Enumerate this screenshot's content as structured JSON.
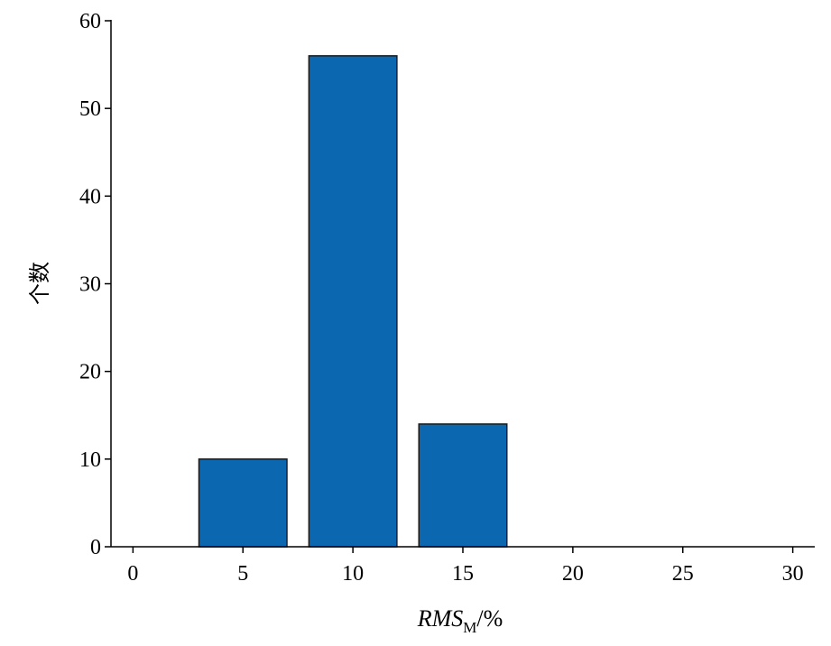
{
  "chart_data": {
    "type": "bar",
    "title": "",
    "ylabel": "个数",
    "xlabel": {
      "main": "RMS",
      "subscript": "M",
      "suffix": "/%"
    },
    "x": [
      5,
      10,
      15
    ],
    "values": [
      10,
      56,
      14
    ],
    "bar_width": 4,
    "xlim": [
      -1,
      31
    ],
    "ylim": [
      0,
      60
    ],
    "xticks": [
      0,
      5,
      10,
      15,
      20,
      25,
      30
    ],
    "yticks": [
      0,
      10,
      20,
      30,
      40,
      50,
      60
    ],
    "grid": false,
    "colors": {
      "bar_fill": "#0b68b0",
      "bar_edge": "#1a1a1a",
      "axis": "#000000"
    }
  }
}
